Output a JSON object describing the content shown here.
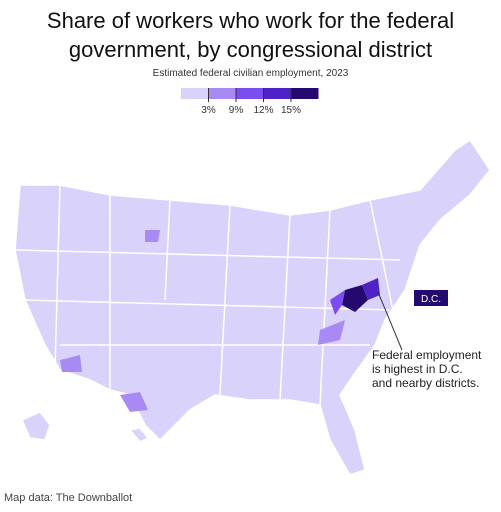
{
  "header": {
    "title": "Share of workers who work for the federal government, by congressional district",
    "subtitle": "Estimated federal civilian employment, 2023"
  },
  "legend": {
    "colors": [
      "#d9d2fa",
      "#a98af5",
      "#7b4df0",
      "#4e22c9",
      "#240a6e"
    ],
    "ticks": [
      {
        "value": 3,
        "label": "3%"
      },
      {
        "value": 9,
        "label": "9%"
      },
      {
        "value": 12,
        "label": "12%"
      },
      {
        "value": 15,
        "label": "15%"
      }
    ]
  },
  "map": {
    "dc_label": "D.C.",
    "annotation": "Federal employment is highest in D.C. and nearby districts."
  },
  "footer": {
    "source": "Map data: The Downballot"
  }
}
